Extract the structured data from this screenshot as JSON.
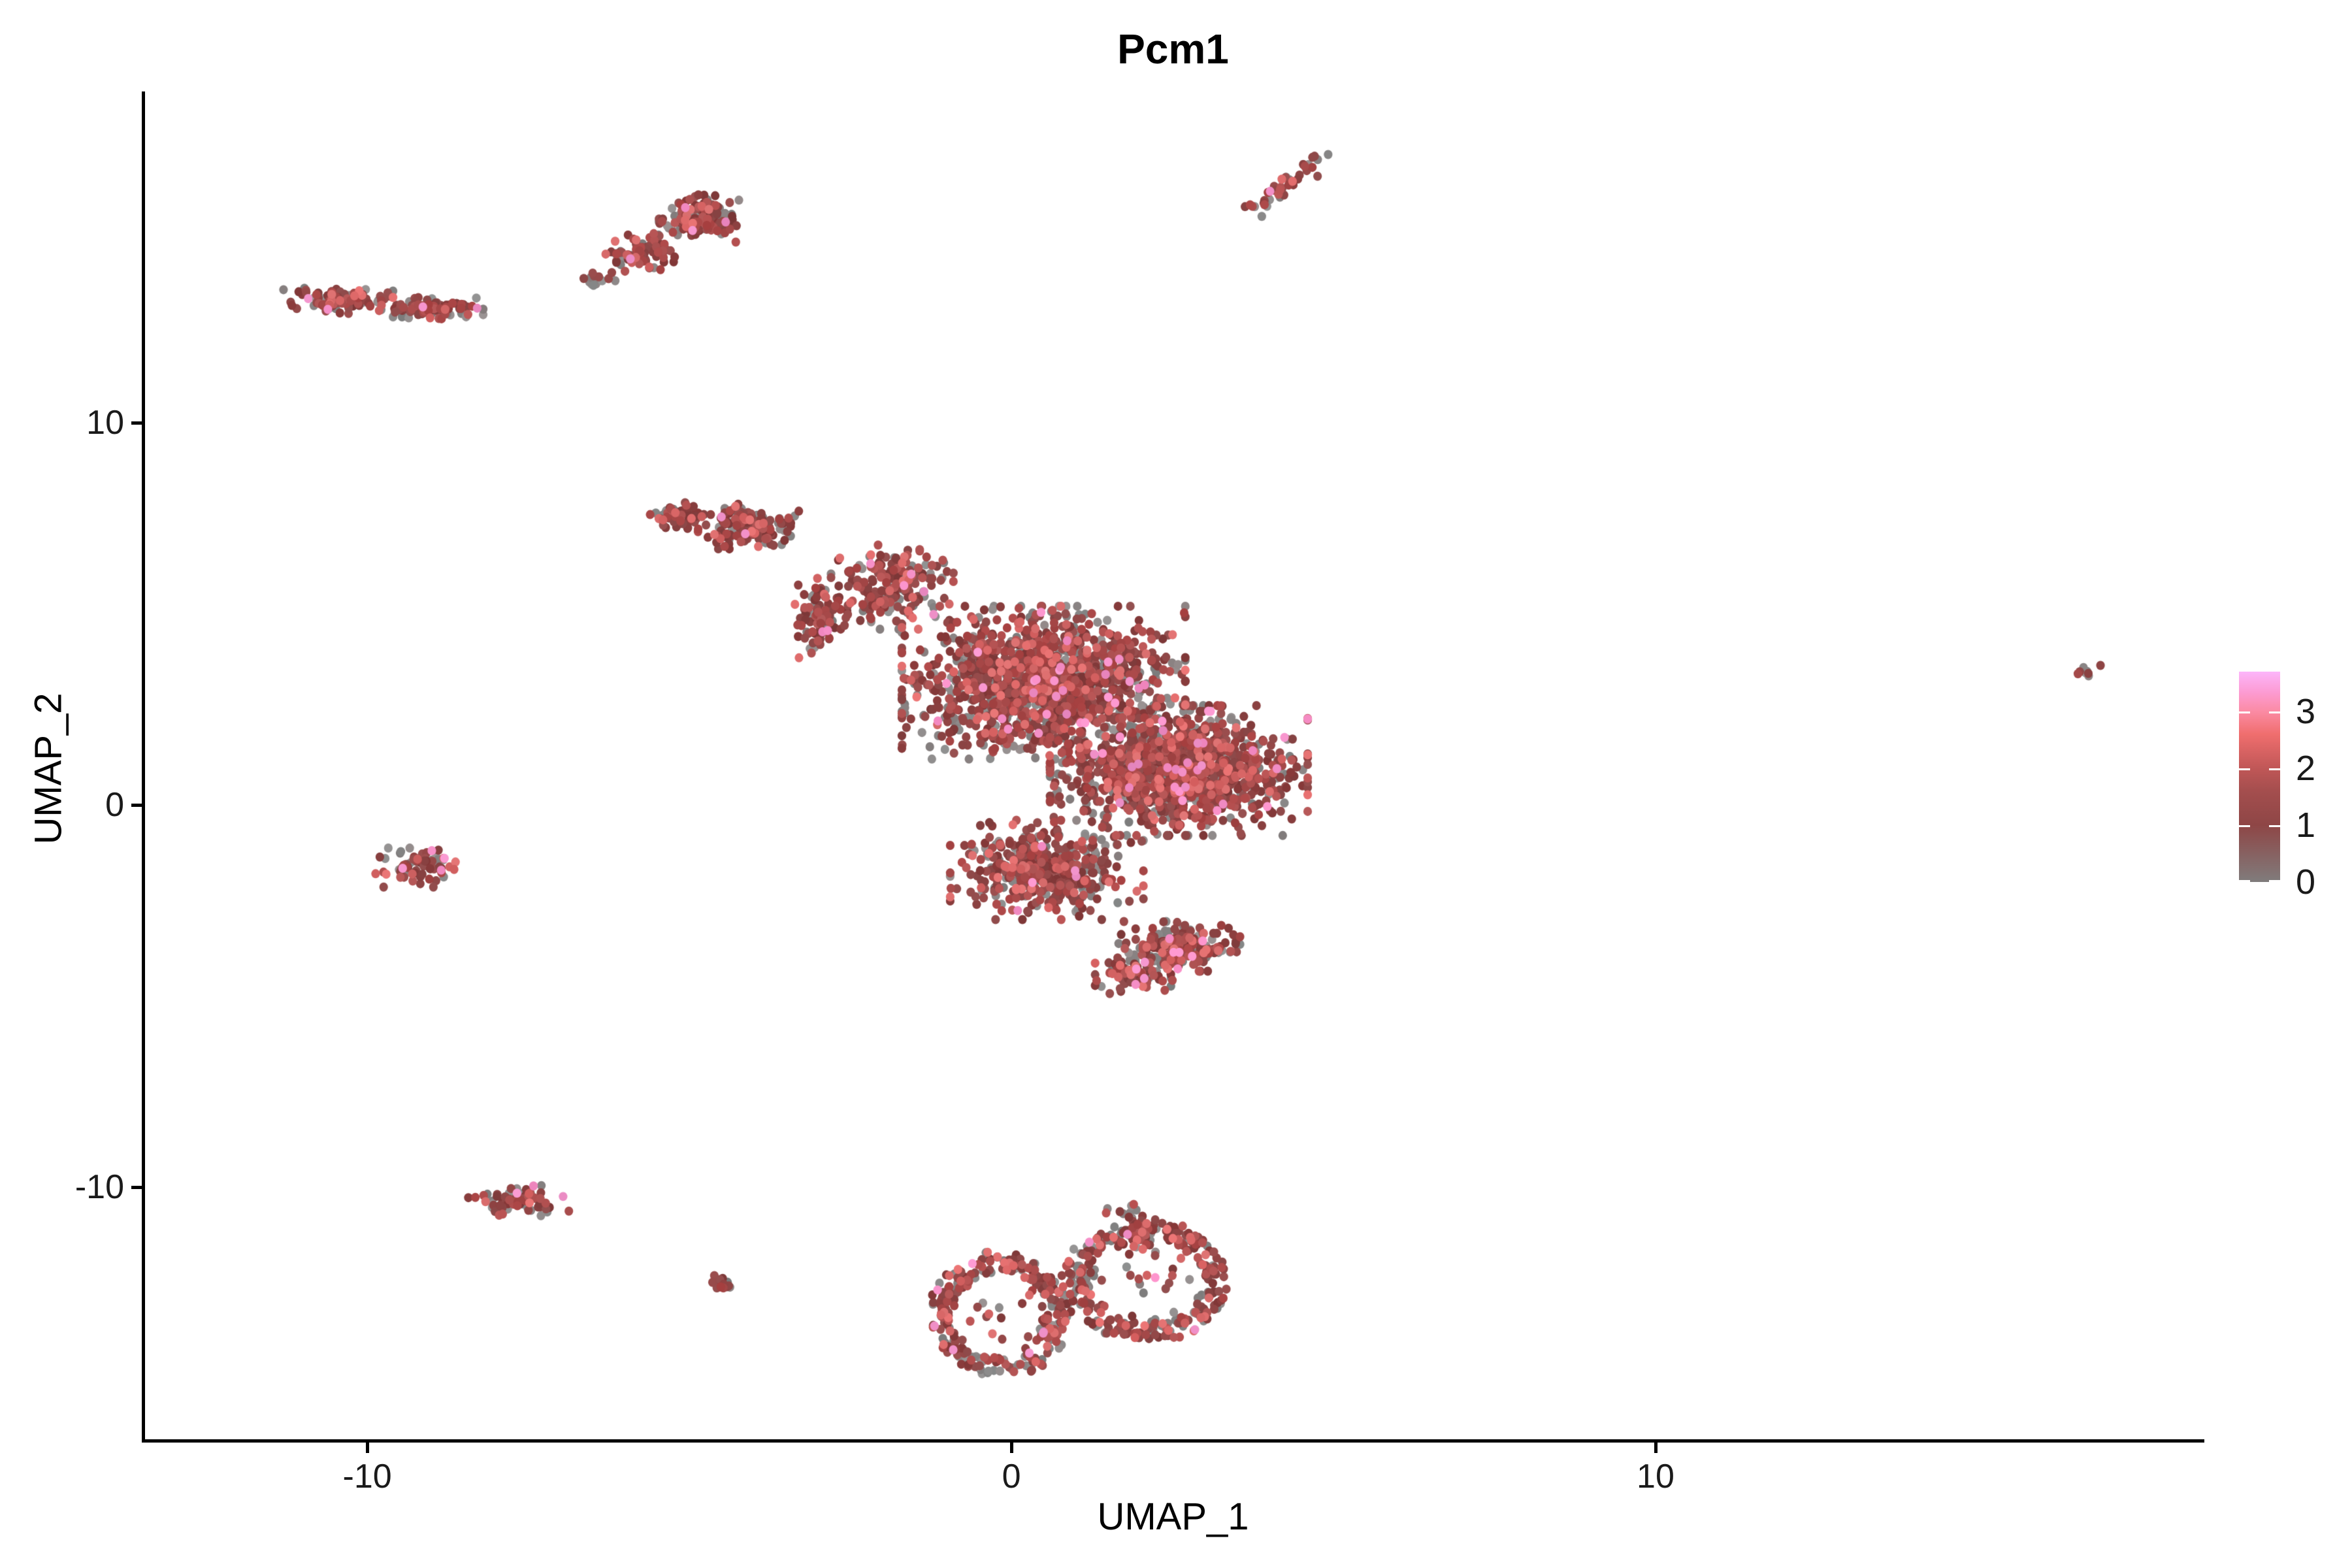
{
  "title": "Pcm1",
  "axes": {
    "x": {
      "label": "UMAP_1",
      "ticks": [
        {
          "label": "-10",
          "value": -10
        },
        {
          "label": "0",
          "value": 0
        },
        {
          "label": "10",
          "value": 10
        }
      ],
      "range": [
        -13.47,
        18.49
      ]
    },
    "y": {
      "label": "UMAP_2",
      "ticks": [
        {
          "label": "10",
          "value": 10
        },
        {
          "label": "0",
          "value": 0
        },
        {
          "label": "-10",
          "value": -10
        }
      ],
      "range": [
        -16.6,
        18.67
      ]
    }
  },
  "legend": {
    "tick_labels": [
      {
        "label": "3",
        "value": 3
      },
      {
        "label": "2",
        "value": 2
      },
      {
        "label": "1",
        "value": 1
      },
      {
        "label": "0",
        "value": 0
      }
    ],
    "value_range": [
      0,
      3.7
    ],
    "gradient": [
      {
        "value": 0.0,
        "color": "#807C7C"
      },
      {
        "value": 1.0,
        "color": "#8E4646"
      },
      {
        "value": 1.6,
        "color": "#A44E4E"
      },
      {
        "value": 2.0,
        "color": "#C05757"
      },
      {
        "value": 2.6,
        "color": "#F06E6E"
      },
      {
        "value": 3.0,
        "color": "#FB8BA4"
      },
      {
        "value": 3.35,
        "color": "#FC9CD4"
      },
      {
        "value": 3.7,
        "color": "#FCB5FA"
      }
    ]
  },
  "chart_data": {
    "type": "scatter",
    "title": "Pcm1",
    "xlabel": "UMAP_1",
    "ylabel": "UMAP_2",
    "xlim": [
      -13.47,
      18.49
    ],
    "ylim": [
      -16.6,
      18.67
    ],
    "grid": false,
    "legend_position": "right",
    "colorbar_title_values": [
      0,
      1,
      2,
      3
    ],
    "point_radius_px": 6.6,
    "point_palette": [
      {
        "name": "expr-0-gray",
        "color": "#8B8787",
        "weight": 0.27
      },
      {
        "name": "expr-1-darkred",
        "color": "#8C4343",
        "weight": 0.44
      },
      {
        "name": "expr-2-red",
        "color": "#AD4C4C",
        "weight": 0.2
      },
      {
        "name": "expr-high-salmon",
        "color": "#DB6A6A",
        "weight": 0.07
      },
      {
        "name": "expr-top-pink",
        "color": "#F490C8",
        "weight": 0.02
      }
    ],
    "clusters": [
      {
        "name": "top-streak",
        "shape": "streak",
        "x1": 3.82,
        "y1": 15.6,
        "x2": 4.78,
        "y2": 17.0,
        "jitter": 0.1,
        "n": 42
      },
      {
        "name": "upper-left-blob-main",
        "shape": "gauss",
        "cx": -4.85,
        "cy": 15.35,
        "rx": 0.62,
        "ry": 0.62,
        "n": 150
      },
      {
        "name": "upper-left-blob-lower",
        "shape": "gauss",
        "cx": -5.75,
        "cy": 14.45,
        "rx": 0.55,
        "ry": 0.5,
        "n": 85
      },
      {
        "name": "upper-left-blob-tail",
        "shape": "gauss",
        "cx": -6.45,
        "cy": 13.7,
        "rx": 0.3,
        "ry": 0.25,
        "n": 14,
        "grayBias": true
      },
      {
        "name": "far-left-bar-west",
        "shape": "gauss",
        "cx": -10.45,
        "cy": 13.2,
        "rx": 0.85,
        "ry": 0.34,
        "n": 120
      },
      {
        "name": "far-left-bar-east",
        "shape": "gauss",
        "cx": -9.05,
        "cy": 13.0,
        "rx": 0.85,
        "ry": 0.3,
        "n": 110
      },
      {
        "name": "arm-tip",
        "shape": "gauss",
        "cx": -5.15,
        "cy": 7.55,
        "rx": 0.5,
        "ry": 0.42,
        "n": 60
      },
      {
        "name": "arm",
        "shape": "gauss",
        "cx": -4.1,
        "cy": 7.3,
        "rx": 0.8,
        "ry": 0.6,
        "n": 170
      },
      {
        "name": "spike",
        "shape": "gauss",
        "cx": -3.0,
        "cy": 4.9,
        "rx": 0.45,
        "ry": 1.05,
        "n": 90
      },
      {
        "name": "bridge",
        "shape": "gauss",
        "cx": -1.85,
        "cy": 5.7,
        "rx": 0.95,
        "ry": 1.1,
        "n": 210
      },
      {
        "name": "core-upper",
        "shape": "gauss",
        "cx": 0.5,
        "cy": 3.2,
        "rx": 2.2,
        "ry": 2.0,
        "n": 1450
      },
      {
        "name": "core-right",
        "shape": "gauss",
        "cx": 2.6,
        "cy": 0.9,
        "rx": 2.0,
        "ry": 1.7,
        "n": 1250
      },
      {
        "name": "core-lower",
        "shape": "gauss",
        "cx": 0.55,
        "cy": -1.7,
        "rx": 1.5,
        "ry": 1.3,
        "n": 480
      },
      {
        "name": "core-tip",
        "shape": "gauss",
        "cx": 1.9,
        "cy": -4.4,
        "rx": 0.6,
        "ry": 0.55,
        "n": 90
      },
      {
        "name": "core-hook",
        "shape": "gauss",
        "cx": 2.6,
        "cy": -3.7,
        "rx": 0.95,
        "ry": 0.65,
        "n": 210
      },
      {
        "name": "left-small",
        "shape": "gauss",
        "cx": -9.25,
        "cy": -1.6,
        "rx": 0.62,
        "ry": 0.55,
        "n": 75
      },
      {
        "name": "bottom-left",
        "shape": "gauss",
        "cx": -7.65,
        "cy": -10.35,
        "rx": 0.78,
        "ry": 0.4,
        "n": 80
      },
      {
        "name": "tiny-dot-cluster",
        "shape": "gauss",
        "cx": -4.5,
        "cy": -12.55,
        "rx": 0.22,
        "ry": 0.28,
        "n": 14
      },
      {
        "name": "ring-left",
        "shape": "ring",
        "cx": -0.18,
        "cy": -13.35,
        "rx": 1.05,
        "ry": 1.6,
        "n": 270,
        "inner": 18
      },
      {
        "name": "ring-right",
        "shape": "ring",
        "cx": 2.1,
        "cy": -12.45,
        "rx": 1.3,
        "ry": 1.55,
        "n": 280,
        "inner": 22
      },
      {
        "name": "ring-arm",
        "shape": "streak",
        "x1": 1.78,
        "y1": -10.55,
        "x2": 2.2,
        "y2": -11.6,
        "jitter": 0.14,
        "n": 30
      },
      {
        "name": "right-mini",
        "shape": "gauss",
        "cx": 16.65,
        "cy": 3.45,
        "rx": 0.3,
        "ry": 0.2,
        "n": 9
      }
    ]
  }
}
